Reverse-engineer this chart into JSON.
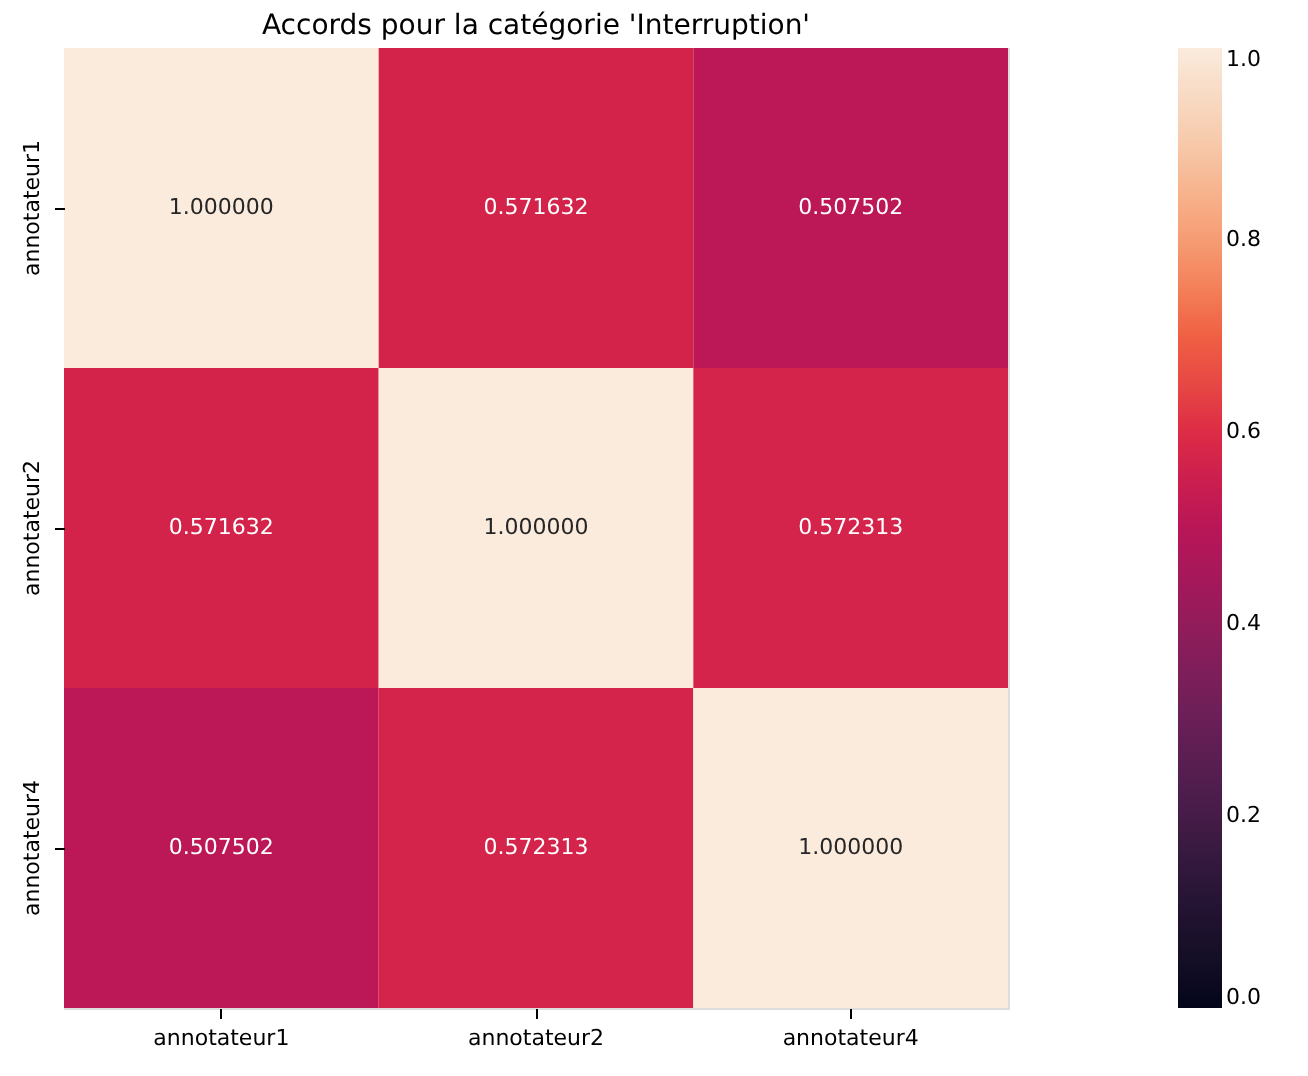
{
  "chart_data": {
    "type": "heatmap",
    "title": "Accords pour la catégorie 'Interruption'",
    "categories": [
      "annotateur1",
      "annotateur2",
      "annotateur4"
    ],
    "y_categories": [
      "annotateur1",
      "annotateur2",
      "annotateur4"
    ],
    "cells": [
      [
        1.0,
        0.571632,
        0.507502
      ],
      [
        0.571632,
        1.0,
        0.572313
      ],
      [
        0.507502,
        0.572313,
        1.0
      ]
    ],
    "cell_labels": [
      [
        "1.000000",
        "0.571632",
        "0.507502"
      ],
      [
        "0.571632",
        "1.000000",
        "0.572313"
      ],
      [
        "0.507502",
        "0.572313",
        "1.000000"
      ]
    ],
    "clim": [
      0,
      1
    ],
    "cticks": [
      {
        "value": 0,
        "label": "0.0"
      },
      0.2,
      0.4,
      0.6,
      0.8,
      {
        "value": 1,
        "label": "1.0"
      }
    ]
  }
}
